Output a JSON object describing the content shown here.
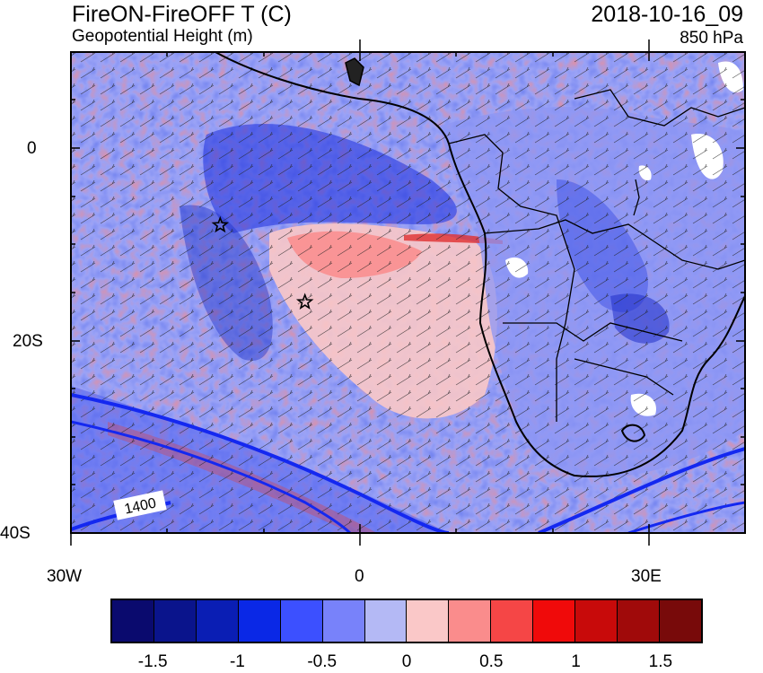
{
  "header": {
    "title": "FireON-FireOFF T (C)",
    "subtitle": "Geopotential Height (m)",
    "date": "2018-10-16_09",
    "level": "850 hPa"
  },
  "map": {
    "lat_ticks": [
      "0",
      "20S",
      "40S"
    ],
    "lon_ticks": [
      "30W",
      "0",
      "30E"
    ],
    "contour_label": "1400",
    "markers": [
      {
        "name": "star-marker-1",
        "lon": -14.5,
        "lat": -8.0
      },
      {
        "name": "star-marker-2",
        "lon": -5.7,
        "lat": -16.0
      }
    ],
    "extent": {
      "lon_min": -30,
      "lon_max": 40,
      "lat_min": -40,
      "lat_max": 10
    }
  },
  "colorbar": {
    "colors": [
      "#0a0a6e",
      "#0a148c",
      "#0a1eb4",
      "#0a28e6",
      "#3c50ff",
      "#7882fa",
      "#b4b9f5",
      "#fac8c8",
      "#fa8c8c",
      "#f54646",
      "#f00a0a",
      "#c80a0a",
      "#a00a0a",
      "#780a0a"
    ],
    "labels": [
      "-1.5",
      "-1",
      "-0.5",
      "0",
      "0.5",
      "1",
      "1.5"
    ]
  },
  "colors": {
    "ocean_blue": "#7882fa",
    "warm_pink": "#fac8c8",
    "warm_red": "#fa8c8c",
    "contour_blue": "#1428f0"
  }
}
